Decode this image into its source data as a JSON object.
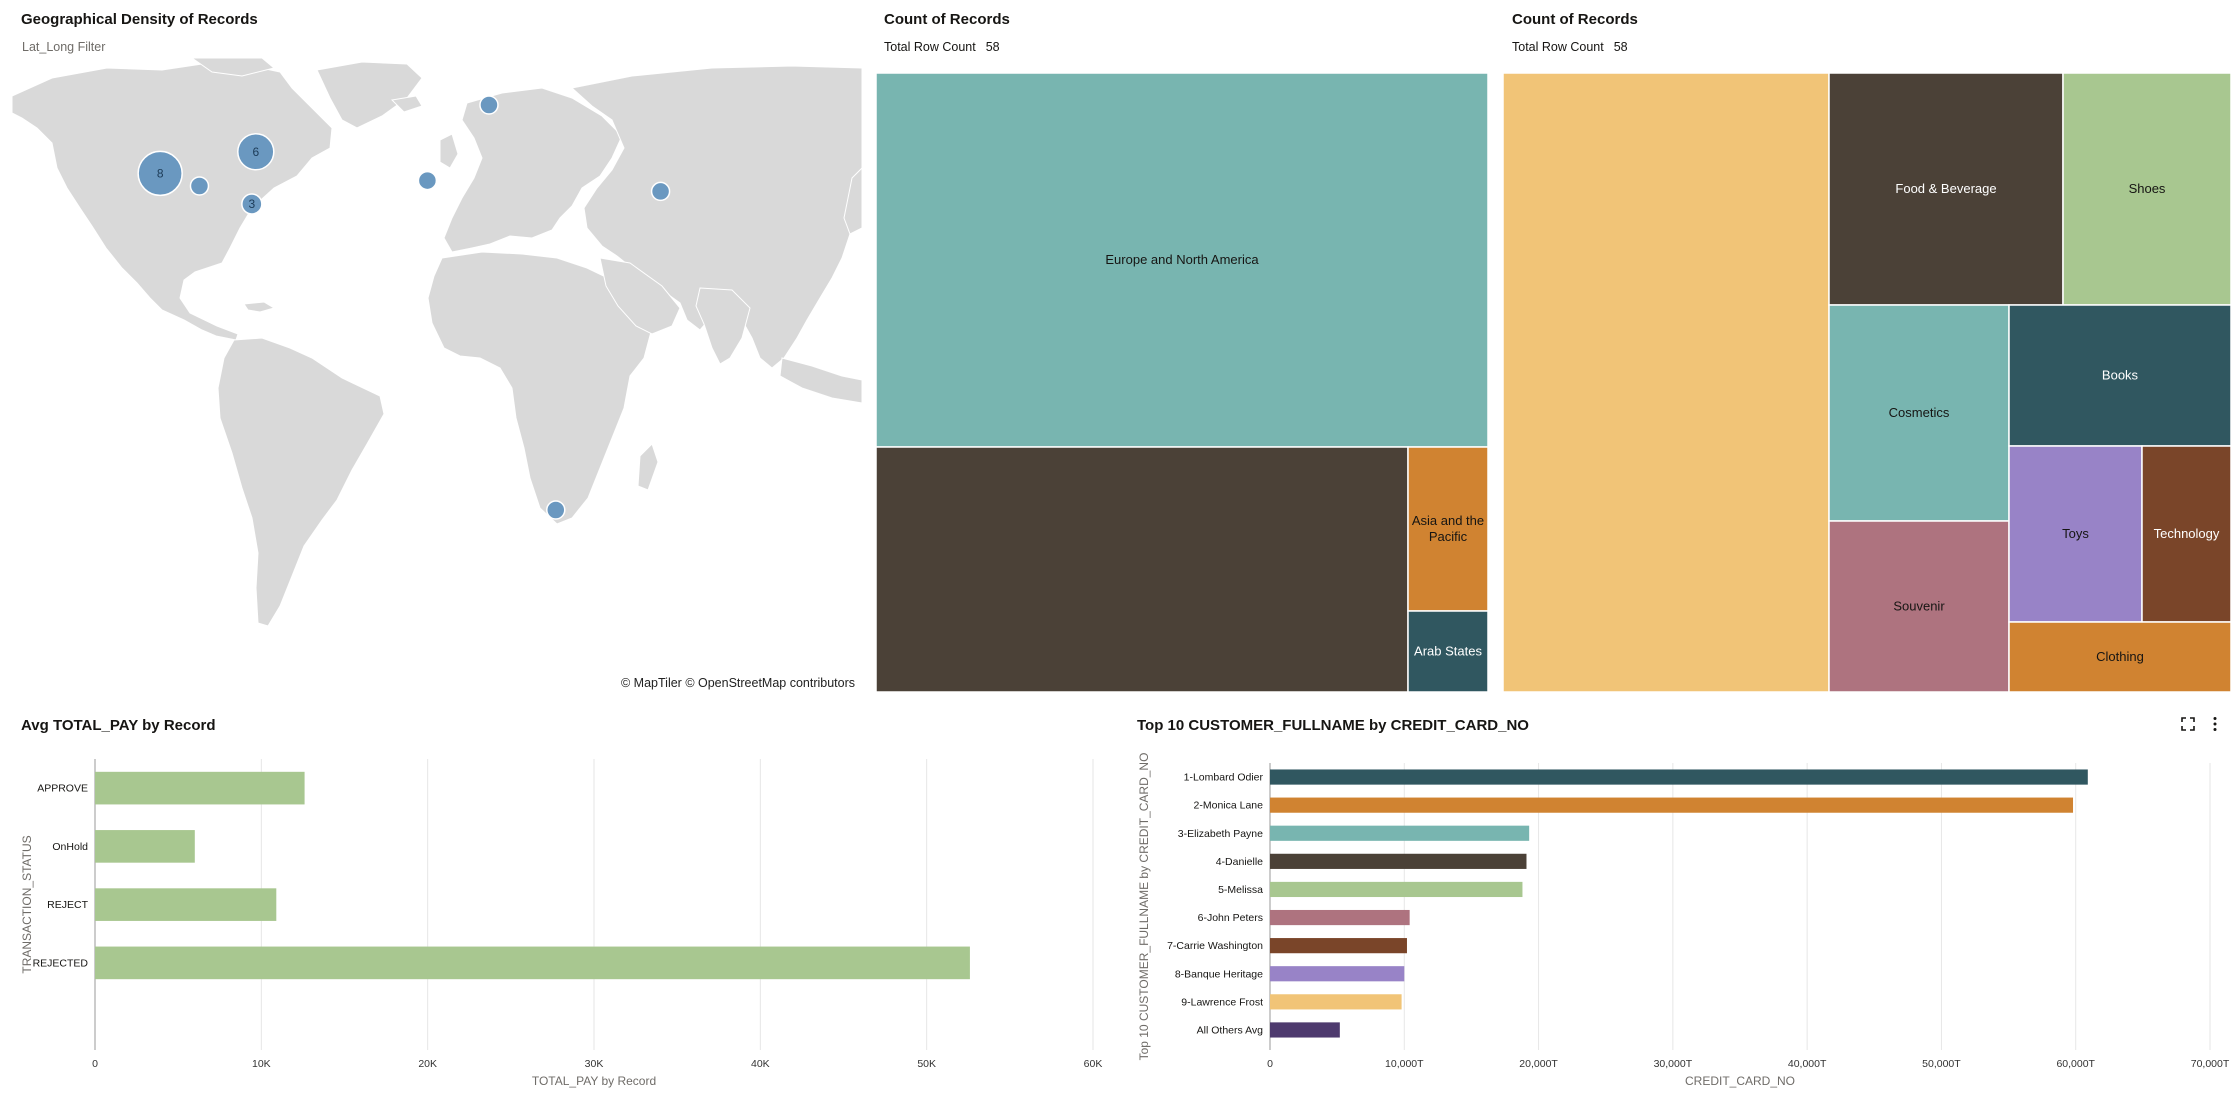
{
  "map_panel": {
    "title": "Geographical Density of Records",
    "subtitle": "Lat_Long Filter",
    "attribution": "© MapTiler © OpenStreetMap contributors",
    "points": [
      {
        "label": "8",
        "lon": -112,
        "lat": 33.5,
        "size": 8
      },
      {
        "label": "6",
        "lon": -75.5,
        "lat": 39.5,
        "size": 6
      },
      {
        "label": "3",
        "lon": -77,
        "lat": 25,
        "size": 3
      },
      {
        "label": "",
        "lon": -97,
        "lat": 30,
        "size": 1
      },
      {
        "label": "",
        "lon": 13.5,
        "lat": 52.5,
        "size": 1
      },
      {
        "label": "",
        "lon": -10,
        "lat": 31.5,
        "size": 1
      },
      {
        "label": "",
        "lon": 79,
        "lat": 28.5,
        "size": 1
      },
      {
        "label": "",
        "lon": 39,
        "lat": -60,
        "size": 1
      }
    ]
  },
  "treemap_region": {
    "title": "Count of Records",
    "row_count_label": "Total Row Count",
    "row_count": "58",
    "cells": [
      {
        "label": "Europe and North America",
        "color": "#78b5b0",
        "text_color": "#161513"
      },
      {
        "label": "",
        "color": "#4b4137",
        "text_color": "#ffffff"
      },
      {
        "label": "Asia and the Pacific",
        "color": "#d08331",
        "text_color": "#161513"
      },
      {
        "label": "Arab States",
        "color": "#305760",
        "text_color": "#ffffff"
      }
    ]
  },
  "treemap_category": {
    "title": "Count of Records",
    "row_count_label": "Total Row Count",
    "row_count": "58",
    "cells": [
      {
        "label": "",
        "color": "#f1c477",
        "text_color": "#161513"
      },
      {
        "label": "Food & Beverage",
        "color": "#4b4137",
        "text_color": "#ffffff"
      },
      {
        "label": "Shoes",
        "color": "#a8c790",
        "text_color": "#161513"
      },
      {
        "label": "Cosmetics",
        "color": "#78b5b0",
        "text_color": "#161513"
      },
      {
        "label": "Books",
        "color": "#305760",
        "text_color": "#ffffff"
      },
      {
        "label": "Souvenir",
        "color": "#ae737f",
        "text_color": "#161513"
      },
      {
        "label": "Toys",
        "color": "#9883c7",
        "text_color": "#161513"
      },
      {
        "label": "Technology",
        "color": "#7a4529",
        "text_color": "#ffffff"
      },
      {
        "label": "Clothing",
        "color": "#d08331",
        "text_color": "#161513"
      }
    ]
  },
  "chart_data": [
    {
      "type": "bar",
      "orientation": "horizontal",
      "title": "Avg TOTAL_PAY by Record",
      "xlabel": "TOTAL_PAY by Record",
      "ylabel": "TRANSACTION_STATUS",
      "categories": [
        "APPROVE",
        "OnHold",
        "REJECT",
        "REJECTED"
      ],
      "values": [
        12600,
        6000,
        10900,
        52600
      ],
      "xlim": [
        0,
        60000
      ],
      "xticks": [
        0,
        10000,
        20000,
        30000,
        40000,
        50000,
        60000
      ],
      "xtick_labels": [
        "0",
        "10K",
        "20K",
        "30K",
        "40K",
        "50K",
        "60K"
      ],
      "grid": true,
      "color": "#a8c790"
    },
    {
      "type": "bar",
      "orientation": "horizontal",
      "title": "Top 10 CUSTOMER_FULLNAME by CREDIT_CARD_NO",
      "xlabel": "CREDIT_CARD_NO",
      "ylabel": "Top 10 CUSTOMER_FULLNAME by CREDIT_CARD_NO",
      "categories": [
        "1-Lombard Odier",
        "2-Monica Lane",
        "3-Elizabeth Payne",
        "4-Danielle",
        "5-Melissa",
        "6-John Peters",
        "7-Carrie Washington",
        "8-Banque Heritage",
        "9-Lawrence Frost",
        "All Others Avg"
      ],
      "values": [
        60900,
        59800,
        19300,
        19100,
        18800,
        10400,
        10200,
        10000,
        9800,
        5200
      ],
      "colors": [
        "#305760",
        "#d08331",
        "#78b5b0",
        "#4b4137",
        "#a8c790",
        "#ae737f",
        "#7a4529",
        "#9883c7",
        "#f1c477",
        "#4e3a6e"
      ],
      "xlim": [
        0,
        70000
      ],
      "xticks": [
        0,
        10000,
        20000,
        30000,
        40000,
        50000,
        60000,
        70000
      ],
      "xtick_labels": [
        "0",
        "10,000T",
        "20,000T",
        "30,000T",
        "40,000T",
        "50,000T",
        "60,000T",
        "70,000T"
      ],
      "grid": true
    }
  ]
}
